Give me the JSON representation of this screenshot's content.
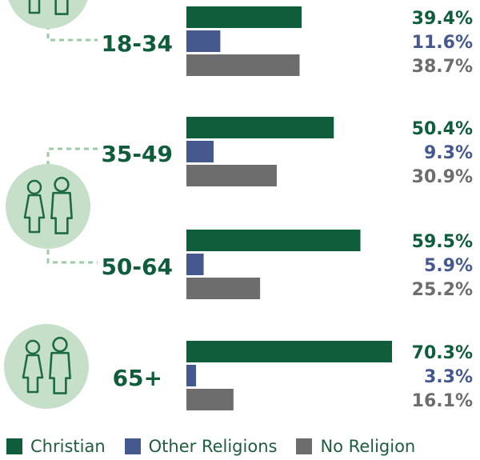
{
  "colors": {
    "christian": "#0f5d3a",
    "other": "#46598f",
    "none": "#6d6d6d",
    "circle_fill": "#c5dfc9",
    "circle_stroke": "#1e6b42",
    "connector": "#9bcba6"
  },
  "legend": {
    "christian": "Christian",
    "other": "Other Religions",
    "none": "No Religion"
  },
  "chart_data": {
    "type": "bar",
    "orientation": "horizontal",
    "categories": [
      "18-34",
      "35-49",
      "50-64",
      "65+"
    ],
    "series": [
      {
        "name": "Christian",
        "values": [
          39.4,
          50.4,
          59.5,
          70.3
        ],
        "labels": [
          "39.4%",
          "50.4%",
          "59.5%",
          "70.3%"
        ]
      },
      {
        "name": "Other Religions",
        "values": [
          11.6,
          9.3,
          5.9,
          3.3
        ],
        "labels": [
          "11.6%",
          "9.3%",
          "5.9%",
          "3.3%"
        ]
      },
      {
        "name": "No Religion",
        "values": [
          38.7,
          30.9,
          25.2,
          16.1
        ],
        "labels": [
          "38.7%",
          "30.9%",
          "25.2%",
          "16.1%"
        ]
      }
    ],
    "xlim": [
      0,
      70.3
    ],
    "grid": false,
    "axes": false,
    "legend_position": "bottom",
    "icons": [
      "young-couple-icon",
      "middle-aged-couple-icon",
      "older-couple-icon"
    ]
  }
}
